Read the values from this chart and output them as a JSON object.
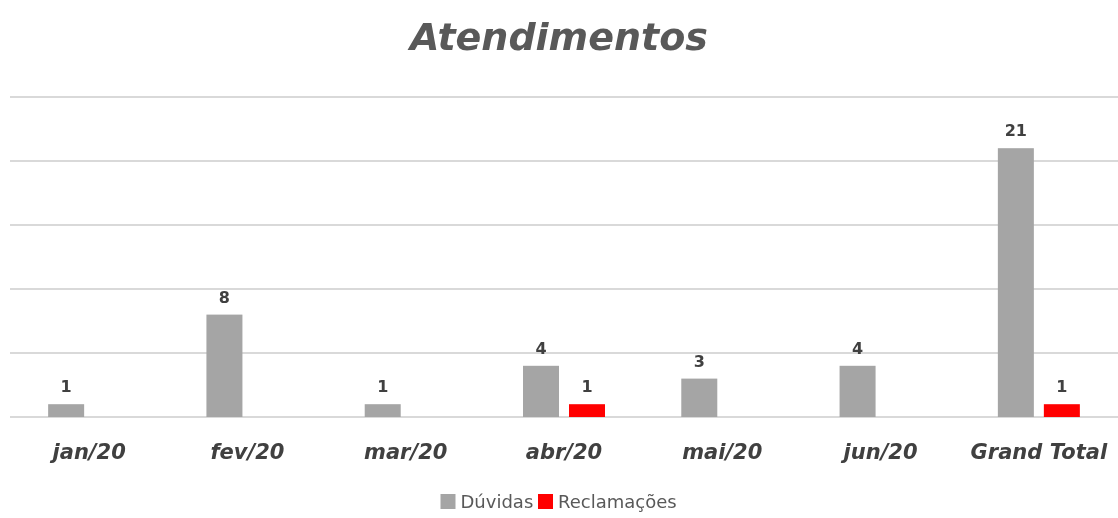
{
  "chart_data": {
    "type": "bar",
    "title": "Atendimentos",
    "categories": [
      "jan/20",
      "fev/20",
      "mar/20",
      "abr/20",
      "mai/20",
      "jun/20",
      "Grand Total"
    ],
    "series": [
      {
        "name": "Dúvidas",
        "color": "#a5a5a5",
        "values": [
          1,
          8,
          1,
          4,
          3,
          4,
          21
        ]
      },
      {
        "name": "Reclamações",
        "color": "#ff0000",
        "values": [
          null,
          null,
          null,
          1,
          null,
          null,
          1
        ]
      }
    ],
    "ylim": [
      0,
      25
    ],
    "yticks": [
      {
        "value": 0,
        "label": null
      },
      {
        "value": 5,
        "label": null
      },
      {
        "value": 10,
        "label": null
      },
      {
        "value": 15,
        "label": null
      },
      {
        "value": 20,
        "label": null
      },
      {
        "value": 25,
        "label": null
      }
    ],
    "tick_labels": "x",
    "grid": "y",
    "legend": "bottom",
    "data_labels": true
  }
}
